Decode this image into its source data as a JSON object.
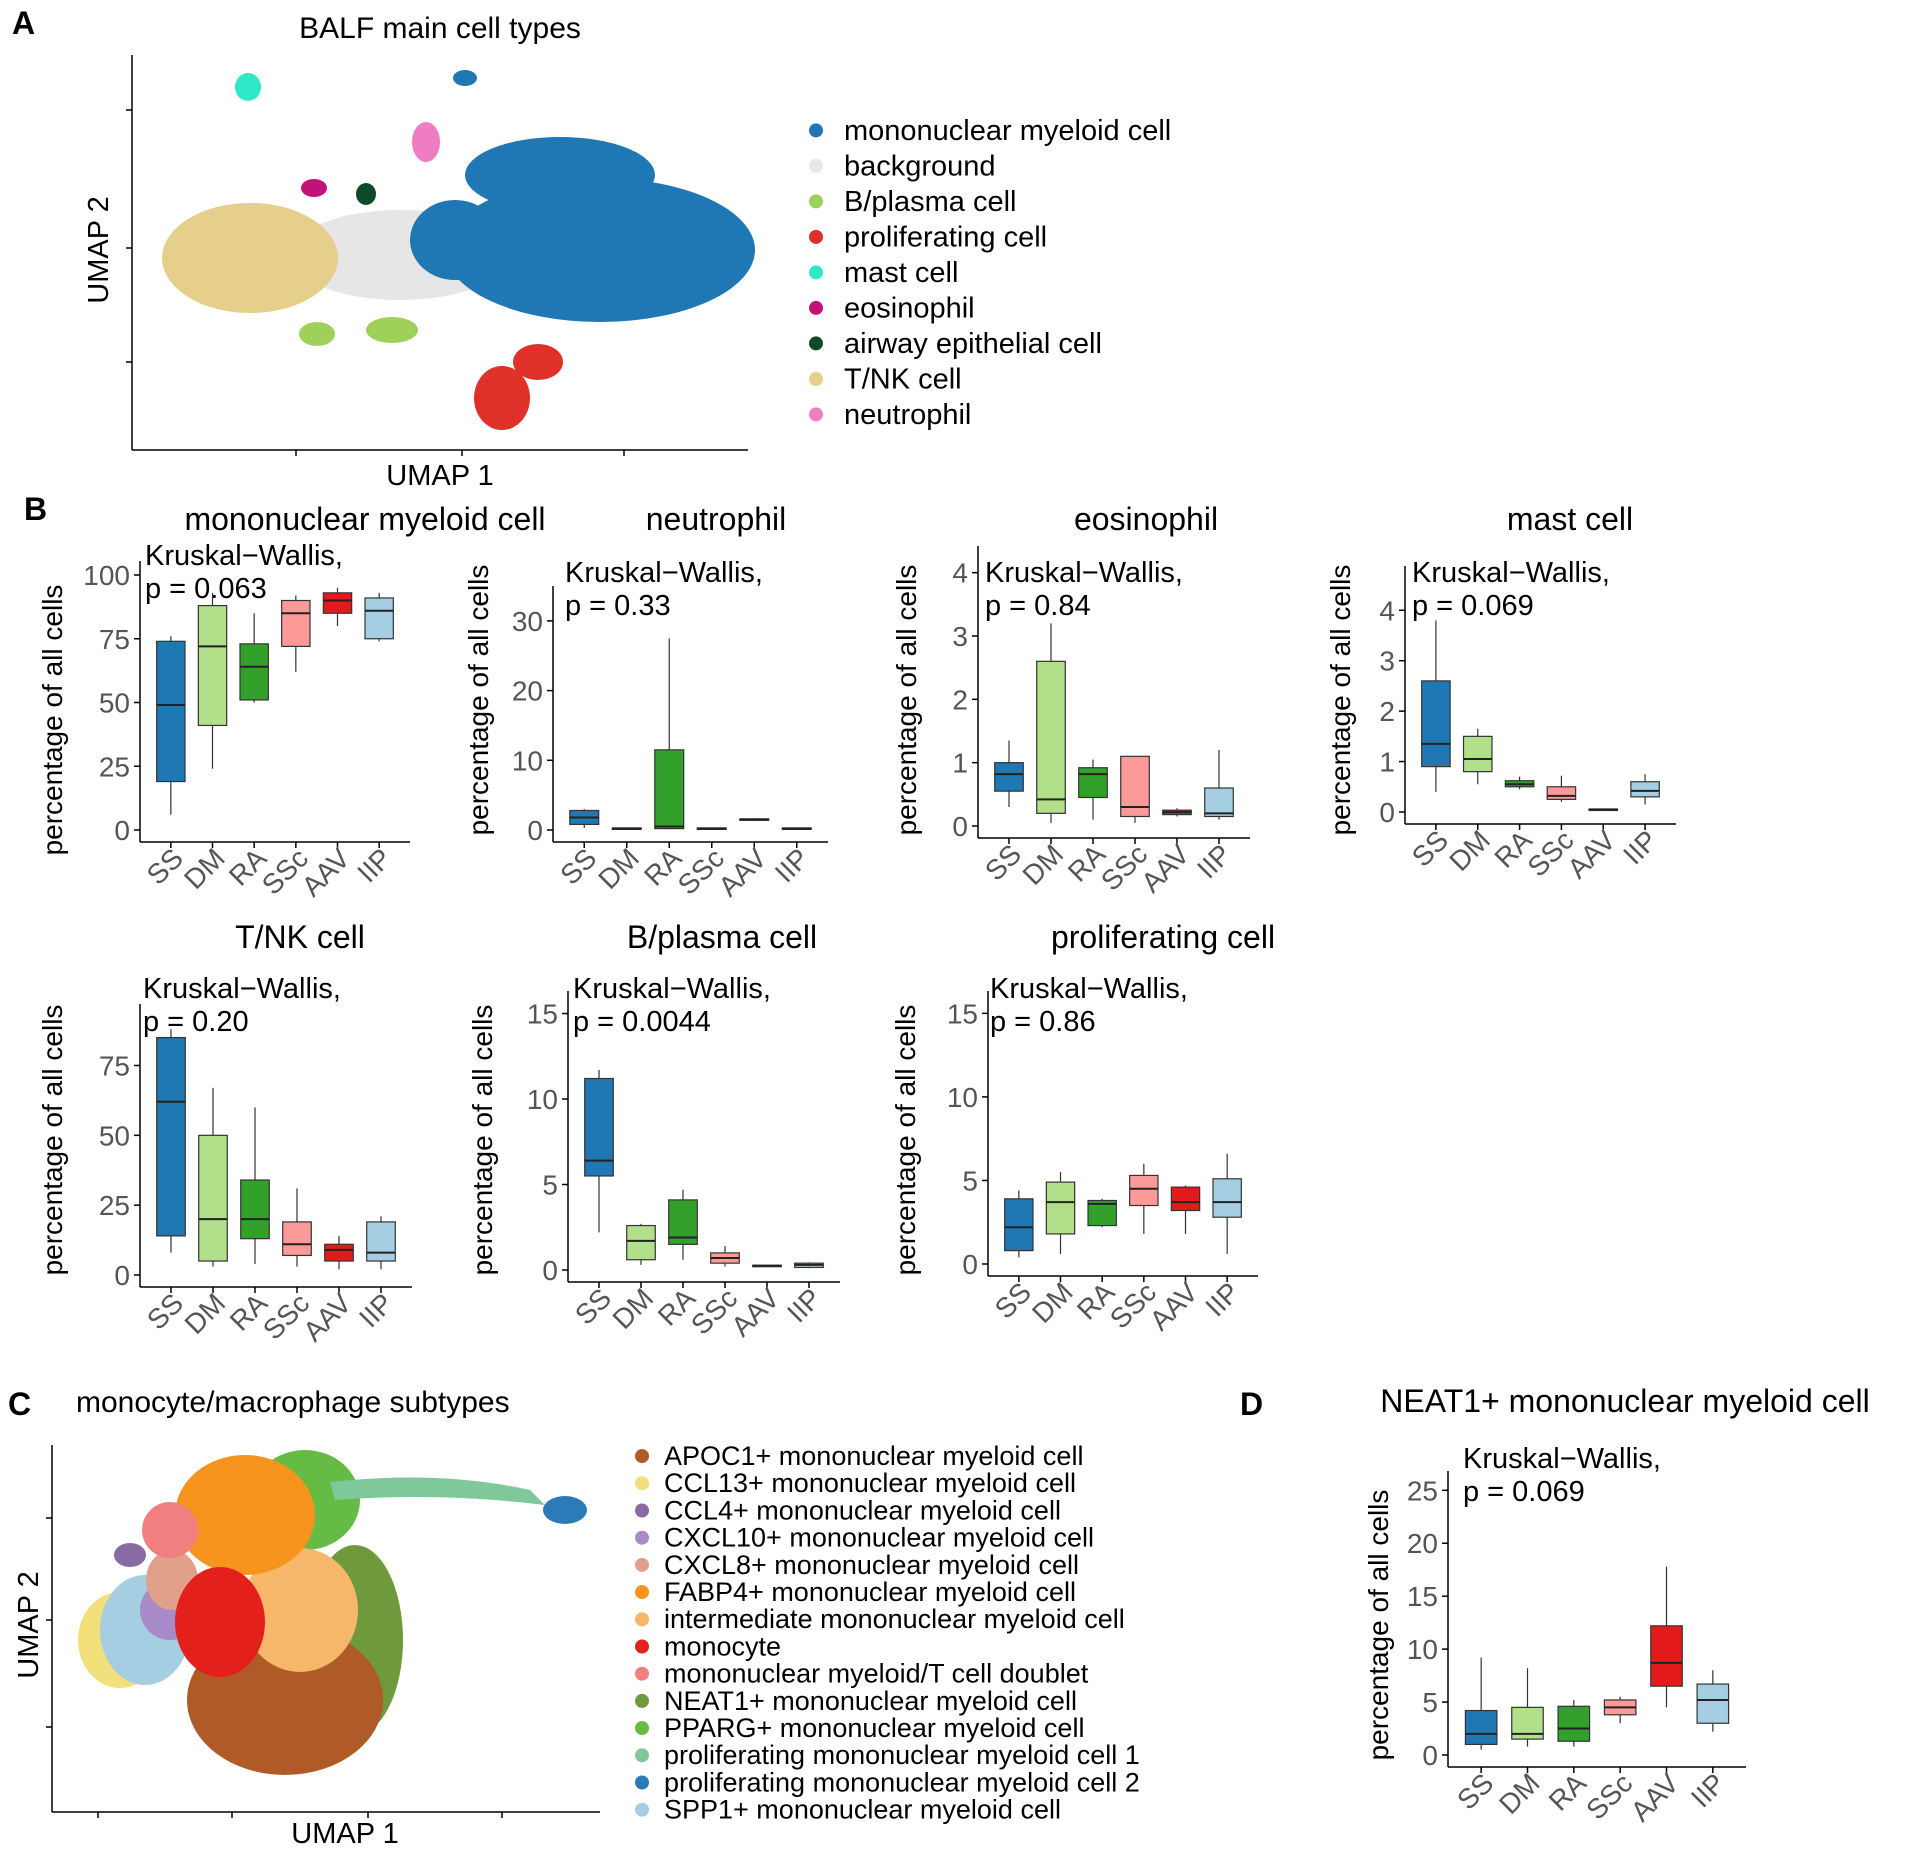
{
  "panel_letters": {
    "a": "A",
    "b": "B",
    "c": "C",
    "d": "D"
  },
  "panelA": {
    "title": "BALF main cell types",
    "xlabel": "UMAP 1",
    "ylabel": "UMAP 2",
    "legend": [
      {
        "label": "mononuclear myeloid cell",
        "color": "#1f77b4"
      },
      {
        "label": "background",
        "color": "#e8e8e8"
      },
      {
        "label": "B/plasma cell",
        "color": "#9fd15a"
      },
      {
        "label": "proliferating cell",
        "color": "#e0302a"
      },
      {
        "label": "mast cell",
        "color": "#2ee8c8"
      },
      {
        "label": "eosinophil",
        "color": "#c2127a"
      },
      {
        "label": "airway epithelial cell",
        "color": "#0d4a2a"
      },
      {
        "label": "T/NK cell",
        "color": "#e6cf8a"
      },
      {
        "label": "neutrophil",
        "color": "#f07cc4"
      }
    ]
  },
  "panelC": {
    "title": "monocyte/macrophage subtypes",
    "xlabel": "UMAP 1",
    "ylabel": "UMAP 2",
    "legend": [
      {
        "label": "APOC1+ mononuclear myeloid cell",
        "color": "#b05a28"
      },
      {
        "label": "CCL13+ mononuclear myeloid cell",
        "color": "#f2e07a"
      },
      {
        "label": "CCL4+ mononuclear myeloid cell",
        "color": "#8a6aa2"
      },
      {
        "label": "CXCL10+ mononuclear myeloid cell",
        "color": "#a98ac8"
      },
      {
        "label": "CXCL8+ mononuclear myeloid cell",
        "color": "#e0a08a"
      },
      {
        "label": "FABP4+ mononuclear myeloid cell",
        "color": "#f7941d"
      },
      {
        "label": "intermediate mononuclear myeloid cell",
        "color": "#f7b76a"
      },
      {
        "label": "monocyte",
        "color": "#e3201b"
      },
      {
        "label": "mononuclear myeloid/T cell doublet",
        "color": "#f08080"
      },
      {
        "label": "NEAT1+ mononuclear myeloid cell",
        "color": "#6f9a3c"
      },
      {
        "label": "PPARG+ mononuclear myeloid cell",
        "color": "#66bb44"
      },
      {
        "label": "proliferating mononuclear myeloid cell 1",
        "color": "#7ec89a"
      },
      {
        "label": "proliferating mononuclear myeloid cell 2",
        "color": "#2b7bb9"
      },
      {
        "label": "SPP1+ mononuclear myeloid cell",
        "color": "#a6cee3"
      }
    ]
  },
  "group_colors": {
    "SS": "#1f78b4",
    "DM": "#b2df8a",
    "RA": "#33a02c",
    "SSc": "#fb9a99",
    "AAV": "#e31a1c",
    "IIP": "#a6cee3"
  },
  "chart_data": [
    {
      "type": "box",
      "title": "mononuclear myeloid cell",
      "ylabel": "percentage of all cells",
      "stat_line1": "Kruskal−Wallis,",
      "stat_line2": "p = 0.063",
      "categories": [
        "SS",
        "DM",
        "RA",
        "SSc",
        "AAV",
        "IIP"
      ],
      "ylim": [
        0,
        100
      ],
      "ticks": [
        0,
        25,
        50,
        75,
        100
      ],
      "boxes": [
        [
          6,
          19,
          49,
          74,
          76
        ],
        [
          24,
          41,
          72,
          88,
          93
        ],
        [
          50,
          51,
          64,
          73,
          85
        ],
        [
          62,
          72,
          85,
          90,
          92
        ],
        [
          80,
          85,
          90,
          93,
          95
        ],
        [
          74,
          75,
          86,
          91,
          93
        ]
      ]
    },
    {
      "type": "box",
      "title": "neutrophil",
      "ylabel": "percentage of all cells",
      "stat_line1": "Kruskal−Wallis,",
      "stat_line2": "p = 0.33",
      "categories": [
        "SS",
        "DM",
        "RA",
        "SSc",
        "AAV",
        "IIP"
      ],
      "ylim": [
        0,
        33
      ],
      "ticks": [
        0,
        10,
        20,
        30
      ],
      "boxes": [
        [
          0.3,
          0.8,
          1.8,
          2.8,
          3
        ],
        [
          0.05,
          0.1,
          0.2,
          0.3,
          0.35
        ],
        [
          0.1,
          0.2,
          0.5,
          11.5,
          27.5
        ],
        [
          0.05,
          0.1,
          0.2,
          0.3,
          0.35
        ],
        [
          1.3,
          1.4,
          1.5,
          1.6,
          1.7
        ],
        [
          0.05,
          0.1,
          0.2,
          0.3,
          0.35
        ]
      ]
    },
    {
      "type": "box",
      "title": "eosinophil",
      "ylabel": "percentage of all cells",
      "stat_line1": "Kruskal−Wallis,",
      "stat_line2": "p = 0.84",
      "categories": [
        "SS",
        "DM",
        "RA",
        "SSc",
        "AAV",
        "IIP"
      ],
      "ylim": [
        0,
        4.2
      ],
      "ticks": [
        0,
        1,
        2,
        3,
        4
      ],
      "boxes": [
        [
          0.3,
          0.55,
          0.82,
          1.0,
          1.35
        ],
        [
          0.05,
          0.2,
          0.42,
          2.6,
          3.2
        ],
        [
          0.1,
          0.45,
          0.82,
          0.92,
          1.05
        ],
        [
          0.05,
          0.15,
          0.3,
          1.1,
          1.1
        ],
        [
          0.15,
          0.18,
          0.22,
          0.25,
          0.28
        ],
        [
          0.1,
          0.15,
          0.2,
          0.6,
          1.2
        ]
      ]
    },
    {
      "type": "box",
      "title": "mast cell",
      "ylabel": "percentage of all cells",
      "stat_line1": "Kruskal−Wallis,",
      "stat_line2": "p = 0.069",
      "categories": [
        "SS",
        "DM",
        "RA",
        "SSc",
        "AAV",
        "IIP"
      ],
      "ylim": [
        0,
        4.6
      ],
      "ticks": [
        0,
        1,
        2,
        3,
        4
      ],
      "boxes": [
        [
          0.4,
          0.9,
          1.35,
          2.6,
          3.8
        ],
        [
          0.55,
          0.8,
          1.05,
          1.5,
          1.65
        ],
        [
          0.45,
          0.5,
          0.55,
          0.62,
          0.7
        ],
        [
          0.2,
          0.25,
          0.32,
          0.5,
          0.72
        ],
        [
          0.03,
          0.04,
          0.05,
          0.06,
          0.07
        ],
        [
          0.15,
          0.3,
          0.42,
          0.6,
          0.75
        ]
      ]
    },
    {
      "type": "box",
      "title": "T/NK cell",
      "ylabel": "percentage of all cells",
      "stat_line1": "Kruskal−Wallis,",
      "stat_line2": "p = 0.20",
      "categories": [
        "SS",
        "DM",
        "RA",
        "SSc",
        "AAV",
        "IIP"
      ],
      "ylim": [
        0,
        92
      ],
      "ticks": [
        0,
        25,
        50,
        75
      ],
      "boxes": [
        [
          8,
          14,
          62,
          85,
          88
        ],
        [
          3,
          5,
          20,
          50,
          67
        ],
        [
          4,
          13,
          20,
          34,
          60
        ],
        [
          3,
          7,
          11,
          19,
          31
        ],
        [
          2,
          5,
          9,
          11,
          14
        ],
        [
          2,
          5,
          8,
          19,
          21
        ]
      ]
    },
    {
      "type": "box",
      "title": "B/plasma cell",
      "ylabel": "percentage of all cells",
      "stat_line1": "Kruskal−Wallis,",
      "stat_line2": "p = 0.0044",
      "categories": [
        "SS",
        "DM",
        "RA",
        "SSc",
        "AAV",
        "IIP"
      ],
      "ylim": [
        0,
        15.5
      ],
      "ticks": [
        0,
        5,
        10,
        15
      ],
      "boxes": [
        [
          2.2,
          5.5,
          6.4,
          11.2,
          11.7
        ],
        [
          0.3,
          0.6,
          1.7,
          2.6,
          2.7
        ],
        [
          0.6,
          1.5,
          1.9,
          4.1,
          4.7
        ],
        [
          0.2,
          0.4,
          0.7,
          1.0,
          1.4
        ],
        [
          0.2,
          0.22,
          0.25,
          0.28,
          0.3
        ],
        [
          0.1,
          0.15,
          0.3,
          0.4,
          0.45
        ]
      ]
    },
    {
      "type": "box",
      "title": "proliferating cell",
      "ylabel": "percentage of all cells",
      "stat_line1": "Kruskal−Wallis,",
      "stat_line2": "p = 0.86",
      "categories": [
        "SS",
        "DM",
        "RA",
        "SSc",
        "AAV",
        "IIP"
      ],
      "ylim": [
        0,
        15.5
      ],
      "ticks": [
        0,
        5,
        10,
        15
      ],
      "boxes": [
        [
          0.4,
          0.8,
          2.2,
          3.9,
          4.4
        ],
        [
          0.6,
          1.8,
          3.7,
          4.9,
          5.5
        ],
        [
          2.2,
          2.3,
          3.6,
          3.8,
          3.9
        ],
        [
          1.8,
          3.5,
          4.5,
          5.3,
          6.0
        ],
        [
          1.8,
          3.2,
          3.7,
          4.6,
          4.7
        ],
        [
          0.6,
          2.8,
          3.7,
          5.1,
          6.6
        ]
      ]
    },
    {
      "type": "box",
      "title": "NEAT1+ mononuclear myeloid cell",
      "ylabel": "percentage of all cells",
      "stat_line1": "Kruskal−Wallis,",
      "stat_line2": "p = 0.069",
      "categories": [
        "SS",
        "DM",
        "RA",
        "SSc",
        "AAV",
        "IIP"
      ],
      "ylim": [
        0,
        25.5
      ],
      "ticks": [
        0,
        5,
        10,
        15,
        20,
        25
      ],
      "boxes": [
        [
          0.5,
          1.0,
          2.0,
          4.2,
          9.2
        ],
        [
          0.8,
          1.5,
          2.0,
          4.5,
          8.2
        ],
        [
          0.8,
          1.3,
          2.5,
          4.6,
          5.2
        ],
        [
          3.0,
          3.8,
          4.5,
          5.2,
          5.5
        ],
        [
          4.5,
          6.5,
          8.7,
          12.2,
          17.8
        ],
        [
          2.2,
          3.0,
          5.2,
          6.7,
          8.0
        ]
      ]
    }
  ]
}
